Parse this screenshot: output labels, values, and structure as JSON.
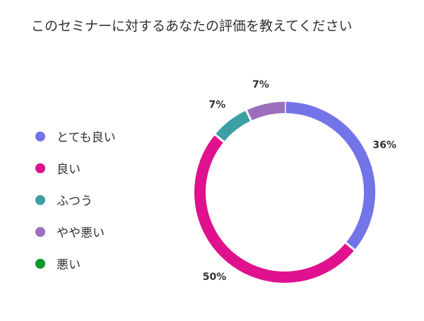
{
  "chart_data": {
    "type": "pie",
    "variant": "donut",
    "title": "このセミナーに対するあなたの評価を教えてください",
    "legend_position": "left",
    "categories": [
      "とても良い",
      "良い",
      "ふつう",
      "やや悪い",
      "悪い"
    ],
    "values": [
      36,
      50,
      7,
      7,
      0
    ],
    "labels": [
      "36%",
      "50%",
      "7%",
      "7%",
      ""
    ],
    "colors": [
      "#7374e8",
      "#e0118e",
      "#3c9fa6",
      "#9c6ebd",
      "#0d9a2a"
    ]
  }
}
